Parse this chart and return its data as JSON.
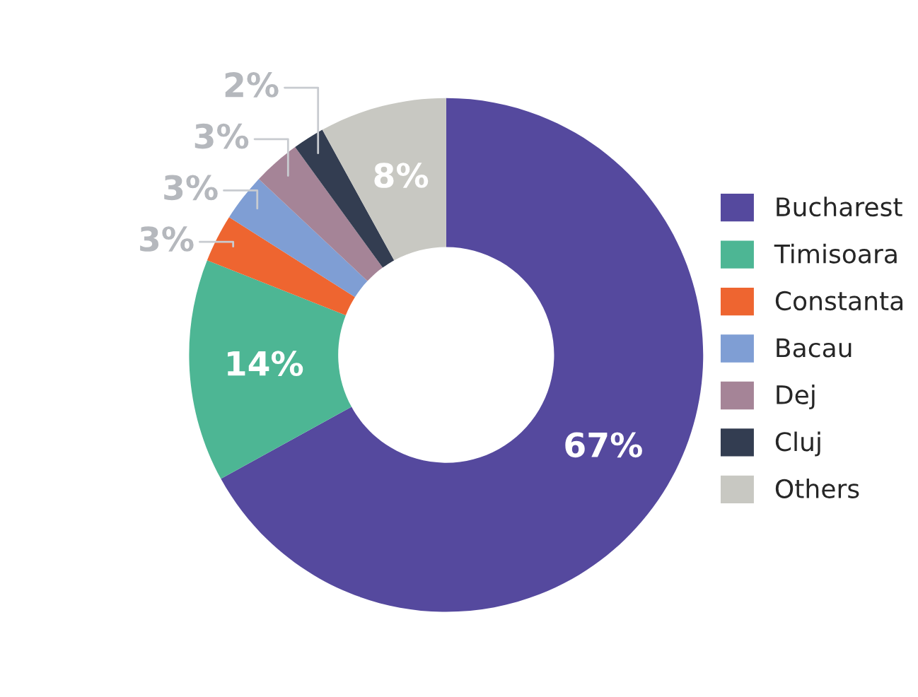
{
  "chart_data": {
    "type": "donut",
    "categories": [
      "Bucharest",
      "Timisoara",
      "Constanta",
      "Bacau",
      "Dej",
      "Cluj",
      "Others"
    ],
    "values": [
      67,
      14,
      3,
      3,
      3,
      2,
      8
    ],
    "colors": [
      "#55499e",
      "#4db694",
      "#ee6530",
      "#7f9ed4",
      "#a58497",
      "#333d51",
      "#c8c8c2"
    ],
    "value_labels": [
      "67%",
      "14%",
      "3%",
      "3%",
      "3%",
      "2%",
      "8%"
    ],
    "legend": "right"
  }
}
